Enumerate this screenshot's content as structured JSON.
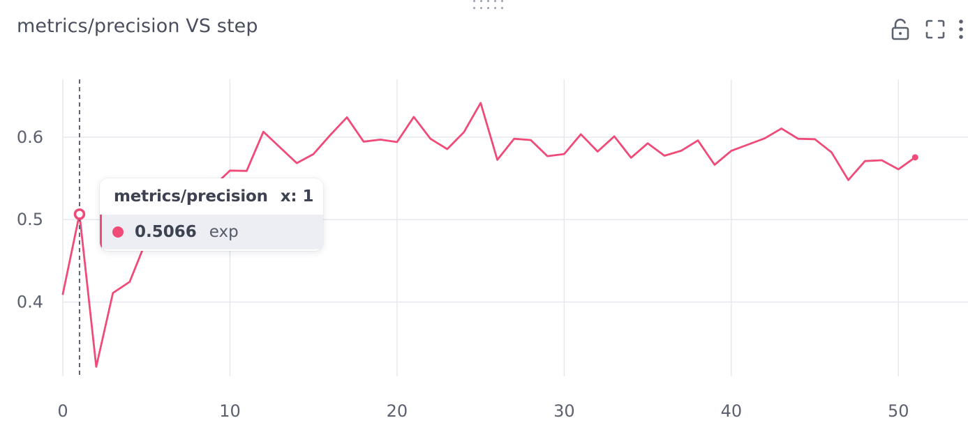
{
  "panel": {
    "title": "metrics/precision VS step",
    "toolbar": {
      "lock_icon": "lock-open-icon",
      "fullscreen_icon": "fullscreen-icon",
      "menu_icon": "more-vertical-icon"
    }
  },
  "tooltip": {
    "metric": "metrics/precision",
    "x_label": "x:",
    "x_value": "1",
    "value": "0.5066",
    "series": "exp"
  },
  "colors": {
    "line": "#ef4a78",
    "grid": "#e6e8ee",
    "axis_text": "#5c6170",
    "crosshair": "#5c6170"
  },
  "chart_data": {
    "type": "line",
    "title": "metrics/precision VS step",
    "xlabel": "",
    "ylabel": "",
    "xlim": [
      0,
      52.2
    ],
    "ylim": [
      0.31,
      0.67
    ],
    "xticks": [
      0,
      10,
      20,
      30,
      40,
      50
    ],
    "yticks": [
      0.4,
      0.5,
      0.6
    ],
    "grid": true,
    "hover_x": 1,
    "series": [
      {
        "name": "exp",
        "x": [
          0,
          1,
          2,
          3,
          4,
          5,
          6,
          7,
          8,
          9,
          10,
          11,
          12,
          13,
          14,
          15,
          16,
          17,
          18,
          19,
          20,
          21,
          22,
          23,
          24,
          25,
          26,
          27,
          28,
          29,
          30,
          31,
          32,
          33,
          34,
          35,
          36,
          37,
          38,
          39,
          40,
          41,
          42,
          43,
          44,
          45,
          46,
          47,
          48,
          49,
          50,
          51
        ],
        "values": [
          0.4096,
          0.5066,
          0.3215,
          0.411,
          0.4245,
          0.475,
          0.497,
          0.507,
          0.52,
          0.54,
          0.5595,
          0.559,
          0.6065,
          0.5875,
          0.5685,
          0.5795,
          0.6025,
          0.624,
          0.5945,
          0.597,
          0.594,
          0.6245,
          0.598,
          0.5855,
          0.606,
          0.6415,
          0.5725,
          0.598,
          0.5965,
          0.577,
          0.5795,
          0.6035,
          0.5825,
          0.601,
          0.575,
          0.5925,
          0.5775,
          0.5835,
          0.596,
          0.5665,
          0.5835,
          0.591,
          0.5985,
          0.6105,
          0.598,
          0.5975,
          0.5815,
          0.548,
          0.571,
          0.572,
          0.561,
          0.5755
        ]
      }
    ]
  }
}
